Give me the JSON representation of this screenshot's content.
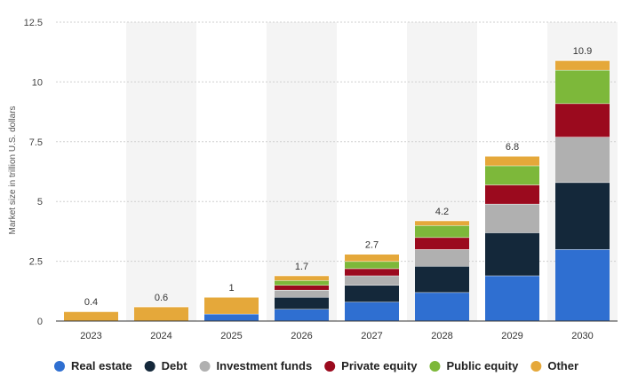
{
  "chart_data": {
    "type": "bar",
    "stacked": true,
    "title": "",
    "xlabel": "",
    "ylabel": "Market size in trillion U.S. dollars",
    "ylim": [
      0,
      12.5
    ],
    "yticks": [
      "0",
      "2.5",
      "5",
      "7.5",
      "10",
      "12.5"
    ],
    "grid": "horizontal dashed",
    "legend_position": "bottom",
    "categories": [
      "2023",
      "2024",
      "2025",
      "2026",
      "2027",
      "2028",
      "2029",
      "2030"
    ],
    "totals": [
      "0.4",
      "0.6",
      "1",
      "1.7",
      "2.7",
      "4.2",
      "6.8",
      "10.9"
    ],
    "series": [
      {
        "name": "Real estate",
        "color": "#2f6fd1",
        "values": [
          0,
          0,
          0.3,
          0.5,
          0.8,
          1.2,
          1.9,
          3.0
        ]
      },
      {
        "name": "Debt",
        "color": "#14283a",
        "values": [
          0,
          0,
          0,
          0.5,
          0.7,
          1.1,
          1.8,
          2.8
        ]
      },
      {
        "name": "Investment funds",
        "color": "#b0b0b0",
        "values": [
          0,
          0,
          0,
          0.3,
          0.4,
          0.7,
          1.2,
          1.9
        ]
      },
      {
        "name": "Private equity",
        "color": "#9b0a1e",
        "values": [
          0,
          0,
          0,
          0.2,
          0.3,
          0.5,
          0.8,
          1.4
        ]
      },
      {
        "name": "Public equity",
        "color": "#7db83a",
        "values": [
          0,
          0,
          0,
          0.2,
          0.3,
          0.5,
          0.8,
          1.4
        ]
      },
      {
        "name": "Other",
        "color": "#e5a83a",
        "values": [
          0.4,
          0.6,
          0.7,
          0.2,
          0.3,
          0.2,
          0.4,
          0.4
        ]
      }
    ]
  }
}
